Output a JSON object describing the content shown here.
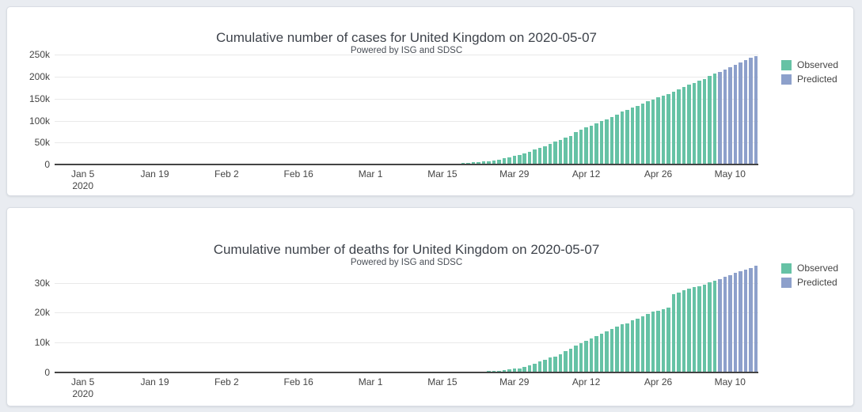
{
  "colors": {
    "observed": "#66c2a5",
    "predicted": "#8da0cb",
    "page_background": "#e9ecf1",
    "card_background": "#ffffff",
    "grid_line": "#e9e9e9",
    "axis_line": "#444444",
    "text": "#444444"
  },
  "chart_data": [
    {
      "type": "bar",
      "title": "Cumulative number of cases for United Kingdom on 2020-05-07",
      "subtitle": "Powered by ISG and SDSC",
      "xlabel": "",
      "ylabel": "",
      "grid": true,
      "legend_position": "right",
      "x_domain": [
        "2019-12-31",
        "2020-05-16"
      ],
      "y_domain": [
        0,
        265000
      ],
      "x_ticks": [
        {
          "date": "2020-01-05",
          "label": "Jan 5",
          "label2": "2020"
        },
        {
          "date": "2020-01-19",
          "label": "Jan 19"
        },
        {
          "date": "2020-02-02",
          "label": "Feb 2"
        },
        {
          "date": "2020-02-16",
          "label": "Feb 16"
        },
        {
          "date": "2020-03-01",
          "label": "Mar 1"
        },
        {
          "date": "2020-03-15",
          "label": "Mar 15"
        },
        {
          "date": "2020-03-29",
          "label": "Mar 29"
        },
        {
          "date": "2020-04-12",
          "label": "Apr 12"
        },
        {
          "date": "2020-04-26",
          "label": "Apr 26"
        },
        {
          "date": "2020-05-10",
          "label": "May 10"
        }
      ],
      "y_ticks": [
        {
          "value": 0,
          "label": "0"
        },
        {
          "value": 50000,
          "label": "50k"
        },
        {
          "value": 100000,
          "label": "100k"
        },
        {
          "value": 150000,
          "label": "150k"
        },
        {
          "value": 200000,
          "label": "200k"
        },
        {
          "value": 250000,
          "label": "250k"
        }
      ],
      "legend": [
        {
          "label": "Observed",
          "color": "#66c2a5"
        },
        {
          "label": "Predicted",
          "color": "#8da0cb"
        }
      ],
      "series": [
        {
          "name": "Observed",
          "color": "#66c2a5",
          "start_date": "2020-01-22",
          "values": [
            0,
            0,
            0,
            0,
            0,
            0,
            0,
            0,
            0,
            2,
            2,
            2,
            8,
            8,
            9,
            9,
            9,
            9,
            9,
            9,
            9,
            9,
            9,
            9,
            9,
            9,
            9,
            9,
            9,
            9,
            9,
            9,
            9,
            13,
            13,
            13,
            15,
            20,
            23,
            36,
            40,
            51,
            85,
            115,
            163,
            206,
            273,
            321,
            382,
            456,
            590,
            798,
            1140,
            1391,
            1543,
            1950,
            2626,
            3269,
            3983,
            5018,
            5683,
            6650,
            8077,
            9529,
            11658,
            14543,
            17089,
            19522,
            22141,
            25150,
            29474,
            33718,
            38168,
            41903,
            47806,
            51608,
            55242,
            60733,
            65077,
            73758,
            78991,
            84279,
            88621,
            93873,
            98476,
            103093,
            108692,
            114217,
            120067,
            124743,
            129044,
            133495,
            138078,
            143464,
            148377,
            152840,
            157149,
            161145,
            165221,
            171253,
            177454,
            182260,
            186599,
            190584,
            194990,
            201101,
            206715
          ]
        },
        {
          "name": "Predicted",
          "color": "#8da0cb",
          "start_date": "2020-05-08",
          "values": [
            211900,
            217100,
            222300,
            227500,
            232600,
            237700,
            242700,
            247600
          ]
        }
      ]
    },
    {
      "type": "bar",
      "title": "Cumulative number of deaths for United Kingdom on 2020-05-07",
      "subtitle": "Powered by ISG and SDSC",
      "xlabel": "",
      "ylabel": "",
      "grid": true,
      "legend_position": "right",
      "x_domain": [
        "2019-12-31",
        "2020-05-16"
      ],
      "y_domain": [
        0,
        37000
      ],
      "x_ticks": [
        {
          "date": "2020-01-05",
          "label": "Jan 5",
          "label2": "2020"
        },
        {
          "date": "2020-01-19",
          "label": "Jan 19"
        },
        {
          "date": "2020-02-02",
          "label": "Feb 2"
        },
        {
          "date": "2020-02-16",
          "label": "Feb 16"
        },
        {
          "date": "2020-03-01",
          "label": "Mar 1"
        },
        {
          "date": "2020-03-15",
          "label": "Mar 15"
        },
        {
          "date": "2020-03-29",
          "label": "Mar 29"
        },
        {
          "date": "2020-04-12",
          "label": "Apr 12"
        },
        {
          "date": "2020-04-26",
          "label": "Apr 26"
        },
        {
          "date": "2020-05-10",
          "label": "May 10"
        }
      ],
      "y_ticks": [
        {
          "value": 0,
          "label": "0"
        },
        {
          "value": 10000,
          "label": "10k"
        },
        {
          "value": 20000,
          "label": "20k"
        },
        {
          "value": 30000,
          "label": "30k"
        }
      ],
      "legend": [
        {
          "label": "Observed",
          "color": "#66c2a5"
        },
        {
          "label": "Predicted",
          "color": "#8da0cb"
        }
      ],
      "series": [
        {
          "name": "Observed",
          "color": "#66c2a5",
          "start_date": "2020-01-22",
          "values": [
            0,
            0,
            0,
            0,
            0,
            0,
            0,
            0,
            0,
            0,
            0,
            0,
            0,
            0,
            0,
            0,
            0,
            0,
            0,
            0,
            0,
            0,
            0,
            0,
            0,
            0,
            0,
            0,
            0,
            0,
            0,
            0,
            0,
            0,
            0,
            0,
            0,
            0,
            0,
            0,
            0,
            0,
            0,
            1,
            2,
            2,
            3,
            4,
            6,
            6,
            8,
            8,
            21,
            35,
            55,
            71,
            104,
            144,
            177,
            233,
            281,
            335,
            422,
            465,
            578,
            759,
            1019,
            1228,
            1408,
            1789,
            2352,
            2921,
            3605,
            4313,
            4934,
            5373,
            6159,
            7097,
            7978,
            8958,
            9875,
            10612,
            11329,
            12107,
            12868,
            13729,
            14576,
            15464,
            16060,
            16509,
            17337,
            18100,
            18738,
            19506,
            20319,
            20732,
            21092,
            21678,
            26097,
            26771,
            27510,
            28131,
            28446,
            28734,
            29427,
            30076,
            30615
          ]
        },
        {
          "name": "Predicted",
          "color": "#8da0cb",
          "start_date": "2020-05-08",
          "values": [
            31250,
            31900,
            32550,
            33200,
            33800,
            34400,
            35000,
            35600
          ]
        }
      ]
    }
  ]
}
